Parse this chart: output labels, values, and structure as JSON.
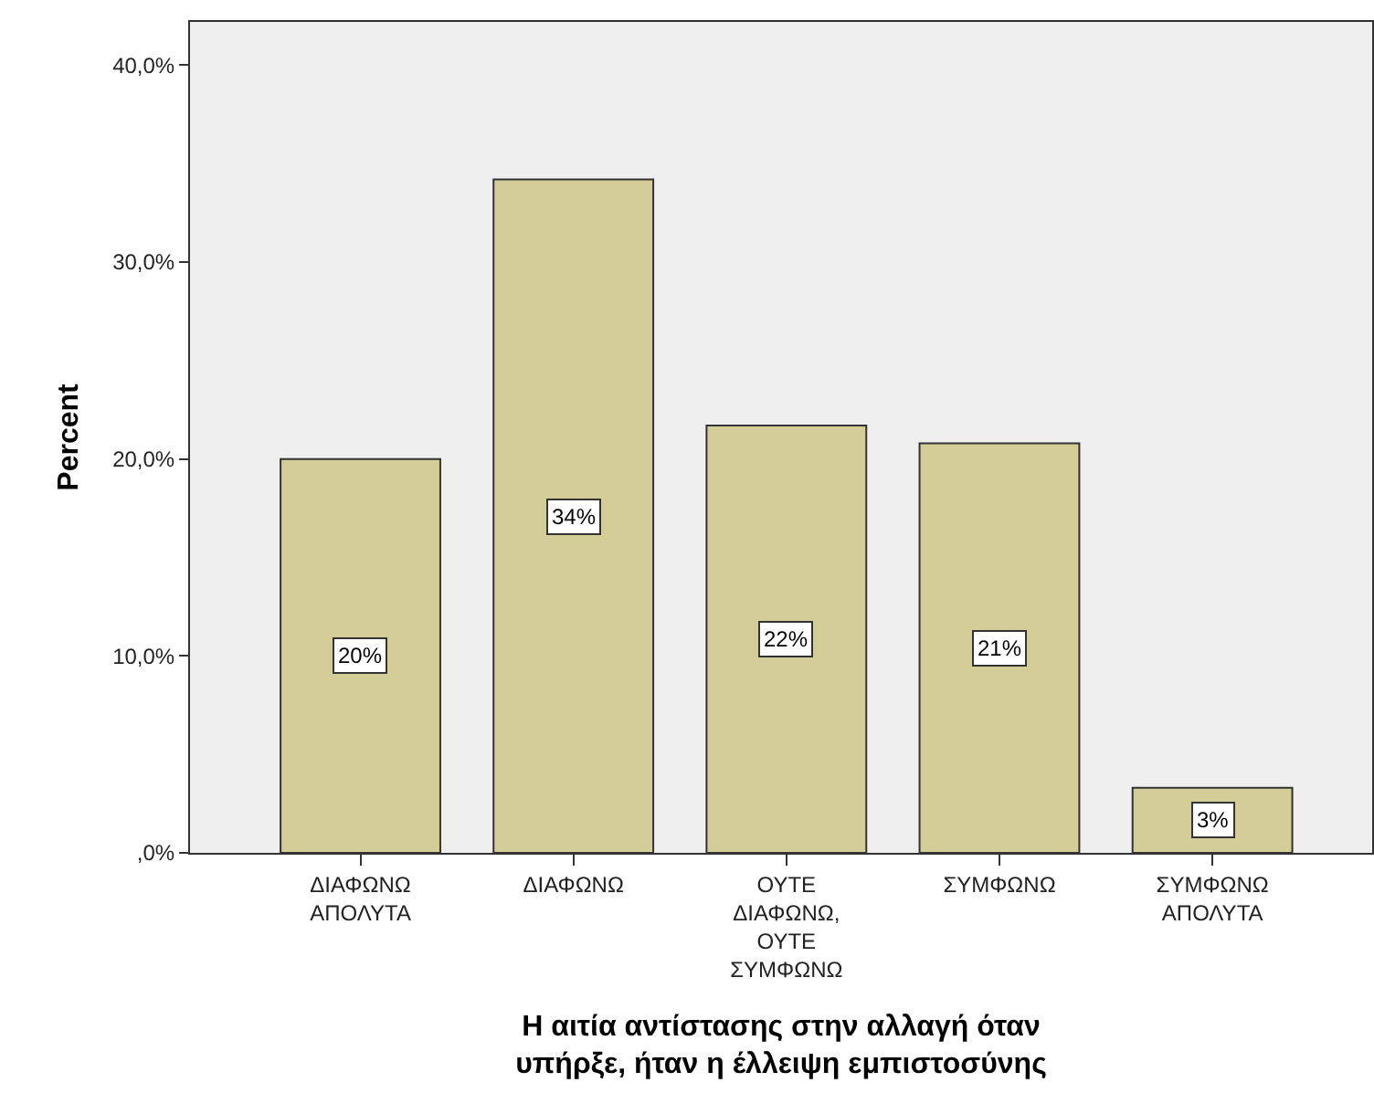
{
  "chart_data": {
    "type": "bar",
    "categories": [
      "ΔΙΑΦΩΝΩ ΑΠΟΛΥΤΑ",
      "ΔΙΑΦΩΝΩ",
      "ΟΥΤΕ ΔΙΑΦΩΝΩ, ΟΥΤΕ ΣΥΜΦΩΝΩ",
      "ΣΥΜΦΩΝΩ",
      "ΣΥΜΦΩΝΩ ΑΠΟΛΥΤΑ"
    ],
    "values": [
      20.0,
      34.2,
      21.7,
      20.8,
      3.3
    ],
    "value_labels": [
      "20%",
      "34%",
      "22%",
      "21%",
      "3%"
    ],
    "color": "#d3cd98",
    "xlabel": "Η αιτία αντίστασης στην αλλαγή όταν υπήρξε, ήταν η έλλειψη εμπιστοσύνης",
    "ylabel": "Percent",
    "ylim": [
      0,
      42.2
    ],
    "yticks": [
      {
        "value": 0,
        "label": ",0%"
      },
      {
        "value": 10,
        "label": "10,0%"
      },
      {
        "value": 20,
        "label": "20,0%"
      },
      {
        "value": 30,
        "label": "30,0%"
      },
      {
        "value": 40,
        "label": "40,0%"
      }
    ]
  }
}
